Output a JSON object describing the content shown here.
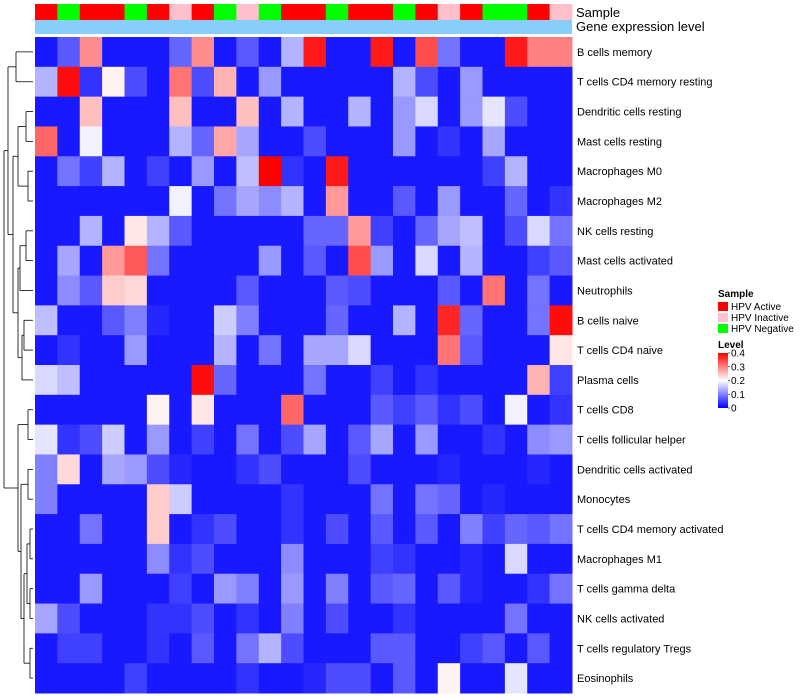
{
  "chart_data": {
    "type": "heatmap",
    "annotation_tracks": [
      "Sample",
      "Gene expression level"
    ],
    "rows": [
      "B cells memory",
      "T cells CD4 memory resting",
      "Dendritic cells resting",
      "Mast cells resting",
      "Macrophages M0",
      "Macrophages M2",
      "NK cells resting",
      "Mast cells activated",
      "Neutrophils",
      "B cells naive",
      "T cells CD4 naive",
      "Plasma cells",
      "T cells CD8",
      "T cells follicular helper",
      "Dendritic cells activated",
      "Monocytes",
      "T cells CD4 memory activated",
      "Macrophages M1",
      "T cells gamma delta",
      "NK cells activated",
      "T cells regulatory  Tregs",
      "Eosinophils"
    ],
    "sample_groups": [
      "HPV Active",
      "HPV Negative",
      "HPV Active",
      "HPV Active",
      "HPV Negative",
      "HPV Active",
      "HPV Inactive",
      "HPV Active",
      "HPV Negative",
      "HPV Inactive",
      "HPV Negative",
      "HPV Active",
      "HPV Active",
      "HPV Negative",
      "HPV Active",
      "HPV Active",
      "HPV Negative",
      "HPV Active",
      "HPV Inactive",
      "HPV Active",
      "HPV Negative",
      "HPV Negative",
      "HPV Active",
      "HPV Inactive"
    ],
    "values": [
      [
        0.02,
        0.07,
        0.29,
        0.02,
        0.02,
        0.02,
        0.08,
        0.29,
        0.02,
        0.07,
        0.02,
        0.14,
        0.38,
        0.02,
        0.02,
        0.38,
        0.02,
        0.34,
        0.09,
        0.02,
        0.02,
        0.38,
        0.3,
        0.3
      ],
      [
        0.14,
        0.39,
        0.04,
        0.21,
        0.06,
        0.02,
        0.31,
        0.06,
        0.26,
        0.02,
        0.12,
        0.02,
        0.02,
        0.02,
        0.02,
        0.02,
        0.14,
        0.06,
        0.02,
        0.12,
        0.02,
        0.02,
        0.02,
        0.02
      ],
      [
        0.02,
        0.02,
        0.25,
        0.02,
        0.02,
        0.02,
        0.25,
        0.02,
        0.02,
        0.25,
        0.02,
        0.14,
        0.02,
        0.02,
        0.14,
        0.02,
        0.12,
        0.17,
        0.02,
        0.12,
        0.18,
        0.06,
        0.02,
        0.02
      ],
      [
        0.32,
        0.02,
        0.19,
        0.02,
        0.02,
        0.02,
        0.14,
        0.08,
        0.27,
        0.13,
        0.02,
        0.02,
        0.06,
        0.02,
        0.02,
        0.02,
        0.12,
        0.02,
        0.04,
        0.02,
        0.13,
        0.02,
        0.02,
        0.02
      ],
      [
        0.02,
        0.09,
        0.05,
        0.14,
        0.02,
        0.05,
        0.02,
        0.12,
        0.02,
        0.15,
        0.4,
        0.04,
        0.02,
        0.38,
        0.02,
        0.02,
        0.02,
        0.02,
        0.02,
        0.02,
        0.05,
        0.14,
        0.02,
        0.02
      ],
      [
        0.02,
        0.02,
        0.02,
        0.02,
        0.02,
        0.02,
        0.19,
        0.02,
        0.09,
        0.13,
        0.11,
        0.14,
        0.02,
        0.28,
        0.02,
        0.02,
        0.07,
        0.02,
        0.12,
        0.02,
        0.02,
        0.08,
        0.02,
        0.04
      ],
      [
        0.02,
        0.02,
        0.14,
        0.02,
        0.22,
        0.14,
        0.07,
        0.02,
        0.02,
        0.02,
        0.02,
        0.02,
        0.08,
        0.08,
        0.28,
        0.05,
        0.02,
        0.08,
        0.13,
        0.15,
        0.02,
        0.06,
        0.17,
        0.09
      ],
      [
        0.02,
        0.13,
        0.02,
        0.28,
        0.33,
        0.09,
        0.02,
        0.02,
        0.02,
        0.02,
        0.12,
        0.02,
        0.07,
        0.02,
        0.34,
        0.12,
        0.02,
        0.17,
        0.02,
        0.14,
        0.02,
        0.02,
        0.05,
        0.07
      ],
      [
        0.02,
        0.11,
        0.07,
        0.24,
        0.23,
        0.02,
        0.02,
        0.02,
        0.02,
        0.07,
        0.02,
        0.02,
        0.02,
        0.07,
        0.06,
        0.02,
        0.02,
        0.02,
        0.07,
        0.02,
        0.31,
        0.02,
        0.09,
        0.02
      ],
      [
        0.15,
        0.02,
        0.02,
        0.07,
        0.1,
        0.03,
        0.02,
        0.02,
        0.16,
        0.1,
        0.02,
        0.02,
        0.02,
        0.08,
        0.02,
        0.02,
        0.14,
        0.02,
        0.37,
        0.08,
        0.02,
        0.02,
        0.09,
        0.39
      ],
      [
        0.02,
        0.04,
        0.02,
        0.02,
        0.12,
        0.02,
        0.02,
        0.02,
        0.14,
        0.02,
        0.09,
        0.02,
        0.13,
        0.13,
        0.17,
        0.02,
        0.02,
        0.02,
        0.31,
        0.07,
        0.02,
        0.02,
        0.02,
        0.22
      ],
      [
        0.17,
        0.15,
        0.02,
        0.02,
        0.02,
        0.02,
        0.02,
        0.39,
        0.08,
        0.02,
        0.02,
        0.02,
        0.09,
        0.02,
        0.02,
        0.05,
        0.02,
        0.04,
        0.02,
        0.02,
        0.02,
        0.02,
        0.26,
        0.05
      ],
      [
        0.02,
        0.02,
        0.02,
        0.02,
        0.02,
        0.21,
        0.02,
        0.22,
        0.02,
        0.02,
        0.02,
        0.32,
        0.02,
        0.02,
        0.02,
        0.07,
        0.05,
        0.07,
        0.04,
        0.06,
        0.02,
        0.19,
        0.02,
        0.04
      ],
      [
        0.18,
        0.04,
        0.06,
        0.16,
        0.02,
        0.12,
        0.02,
        0.05,
        0.02,
        0.09,
        0.02,
        0.06,
        0.13,
        0.02,
        0.07,
        0.13,
        0.02,
        0.12,
        0.02,
        0.02,
        0.04,
        0.02,
        0.11,
        0.12
      ],
      [
        0.1,
        0.23,
        0.02,
        0.13,
        0.12,
        0.06,
        0.03,
        0.02,
        0.02,
        0.04,
        0.06,
        0.02,
        0.02,
        0.02,
        0.06,
        0.02,
        0.02,
        0.02,
        0.03,
        0.02,
        0.02,
        0.02,
        0.03,
        0.02
      ],
      [
        0.1,
        0.02,
        0.02,
        0.02,
        0.02,
        0.24,
        0.16,
        0.02,
        0.02,
        0.02,
        0.02,
        0.04,
        0.02,
        0.02,
        0.02,
        0.09,
        0.02,
        0.09,
        0.08,
        0.02,
        0.03,
        0.02,
        0.02,
        0.02
      ],
      [
        0.02,
        0.02,
        0.09,
        0.02,
        0.02,
        0.24,
        0.02,
        0.04,
        0.06,
        0.02,
        0.02,
        0.04,
        0.02,
        0.06,
        0.02,
        0.07,
        0.02,
        0.07,
        0.02,
        0.1,
        0.05,
        0.08,
        0.07,
        0.09
      ],
      [
        0.02,
        0.02,
        0.02,
        0.02,
        0.02,
        0.11,
        0.04,
        0.06,
        0.02,
        0.02,
        0.02,
        0.11,
        0.02,
        0.02,
        0.02,
        0.05,
        0.04,
        0.02,
        0.02,
        0.03,
        0.02,
        0.17,
        0.02,
        0.02
      ],
      [
        0.02,
        0.02,
        0.12,
        0.02,
        0.02,
        0.02,
        0.05,
        0.02,
        0.12,
        0.1,
        0.02,
        0.12,
        0.02,
        0.1,
        0.02,
        0.07,
        0.08,
        0.02,
        0.07,
        0.03,
        0.02,
        0.02,
        0.04,
        0.09
      ],
      [
        0.13,
        0.06,
        0.02,
        0.02,
        0.02,
        0.04,
        0.04,
        0.06,
        0.02,
        0.04,
        0.02,
        0.1,
        0.02,
        0.06,
        0.02,
        0.02,
        0.04,
        0.02,
        0.02,
        0.02,
        0.02,
        0.09,
        0.02,
        0.02
      ],
      [
        0.02,
        0.05,
        0.05,
        0.02,
        0.02,
        0.04,
        0.02,
        0.07,
        0.02,
        0.09,
        0.14,
        0.06,
        0.02,
        0.02,
        0.02,
        0.07,
        0.07,
        0.02,
        0.02,
        0.05,
        0.07,
        0.02,
        0.07,
        0.02
      ],
      [
        0.02,
        0.02,
        0.02,
        0.02,
        0.05,
        0.02,
        0.02,
        0.02,
        0.02,
        0.04,
        0.02,
        0.02,
        0.03,
        0.06,
        0.06,
        0.02,
        0.07,
        0.02,
        0.21,
        0.02,
        0.02,
        0.18,
        0.02,
        0.02
      ]
    ],
    "legend_sample": {
      "title": "Sample",
      "items": [
        {
          "label": "HPV Active",
          "color": "#ff0000"
        },
        {
          "label": "HPV Inactive",
          "color": "#ffc0cb"
        },
        {
          "label": "HPV Negative",
          "color": "#00ff00"
        }
      ]
    },
    "legend_level": {
      "title": "Level",
      "range": [
        0,
        0.4
      ],
      "ticks": [
        "0.4",
        "0.3",
        "0.2",
        "0.1",
        "0"
      ],
      "colors": [
        "#0000ff",
        "#ffffff",
        "#ff0000"
      ]
    },
    "expression_track_color": "#87cefa"
  }
}
